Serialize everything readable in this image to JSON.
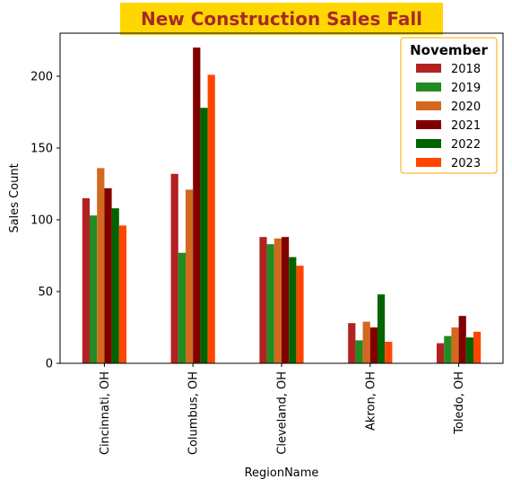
{
  "chart_data": {
    "type": "bar",
    "title": "New Construction Sales Fall",
    "title_color": "#A52A2A",
    "title_background": "#FFD700",
    "xlabel": "RegionName",
    "ylabel": "Sales Count",
    "categories": [
      "Cincinnati, OH",
      "Columbus, OH",
      "Cleveland, OH",
      "Akron, OH",
      "Toledo, OH"
    ],
    "ylim": [
      0,
      230
    ],
    "yticks": [
      "0",
      "50",
      "100",
      "150",
      "200"
    ],
    "legend_title": "November",
    "legend_position": "upper-right",
    "legend_border_color": "#FFA500",
    "grid": false,
    "series": [
      {
        "name": "2018",
        "color": "#B22222",
        "values": [
          115,
          132,
          88,
          28,
          14
        ]
      },
      {
        "name": "2019",
        "color": "#228B22",
        "values": [
          103,
          77,
          83,
          16,
          19
        ]
      },
      {
        "name": "2020",
        "color": "#D2691E",
        "values": [
          136,
          121,
          87,
          29,
          25
        ]
      },
      {
        "name": "2021",
        "color": "#800000",
        "values": [
          122,
          220,
          88,
          25,
          33
        ]
      },
      {
        "name": "2022",
        "color": "#006400",
        "values": [
          108,
          178,
          74,
          48,
          18
        ]
      },
      {
        "name": "2023",
        "color": "#FF4500",
        "values": [
          96,
          201,
          68,
          15,
          22
        ]
      }
    ]
  }
}
